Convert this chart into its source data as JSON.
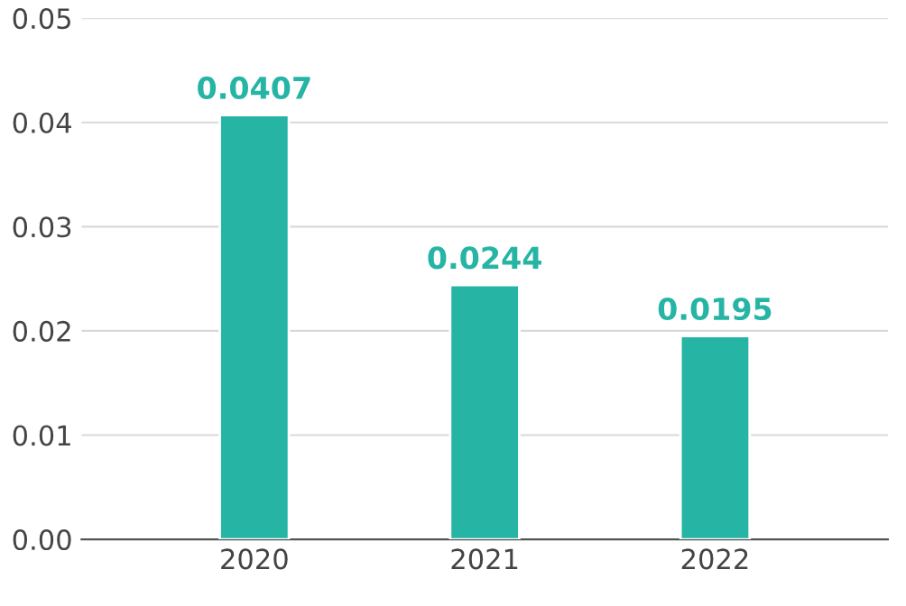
{
  "chart_data": {
    "type": "bar",
    "categories": [
      "2020",
      "2021",
      "2022"
    ],
    "values": [
      0.0407,
      0.0244,
      0.0195
    ],
    "color": "#26b5a5",
    "ylim": [
      0,
      0.05
    ],
    "yticks": [
      {
        "value": 0,
        "label": "0.00"
      },
      {
        "value": 0.01,
        "label": "0.01"
      },
      {
        "value": 0.02,
        "label": "0.02"
      },
      {
        "value": 0.03,
        "label": "0.03"
      },
      {
        "value": 0.04,
        "label": "0.04"
      },
      {
        "value": 0.05,
        "label": "0.05"
      }
    ],
    "grid": "y",
    "data_labels": true
  }
}
